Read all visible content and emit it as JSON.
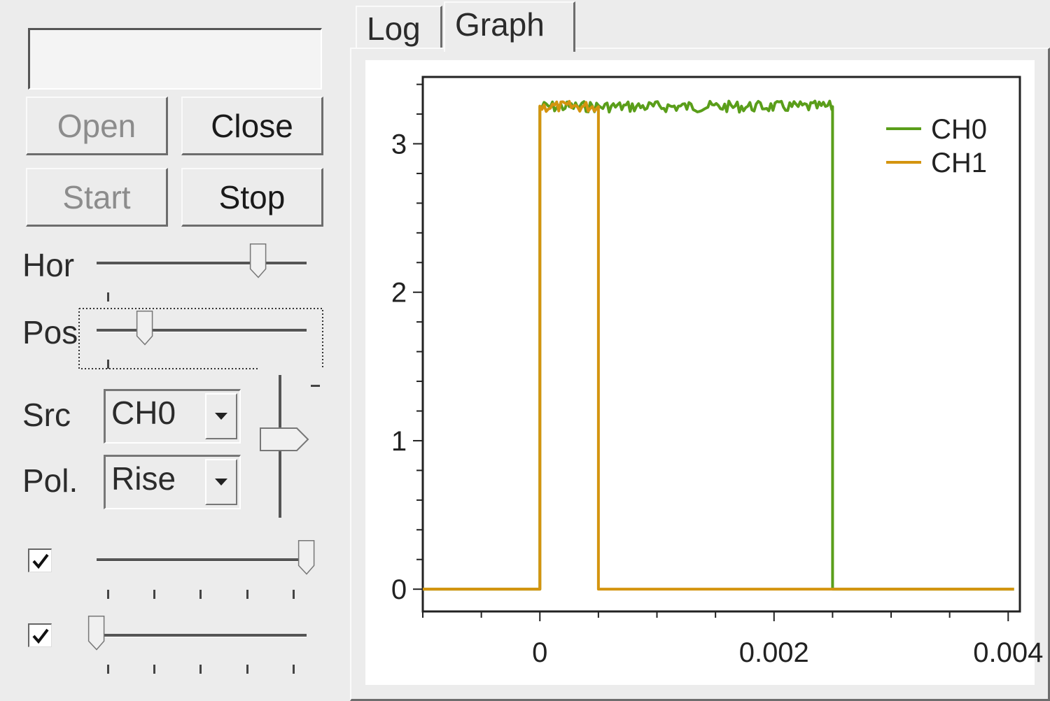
{
  "controls": {
    "textbox_value": "",
    "buttons": {
      "open": "Open",
      "close": "Close",
      "start": "Start",
      "stop": "Stop"
    },
    "labels": {
      "hor": "Hor",
      "pos": "Pos",
      "src": "Src",
      "pol": "Pol."
    },
    "src_value": "CH0",
    "pol_value": "Rise",
    "sliders": {
      "hor_level": 0.77,
      "pos_level": 0.23,
      "trigger_level": 0.45,
      "ch0_level": 1.0,
      "ch1_level": 0.0
    },
    "checkboxes": {
      "ch0_checked": true,
      "ch1_checked": true
    }
  },
  "tabs": {
    "log": "Log",
    "graph": "Graph",
    "active": "graph"
  },
  "colors": {
    "ch0": "#5a9e1a",
    "ch1": "#d4940f"
  },
  "chart_data": {
    "type": "line",
    "xlim": [
      -0.001,
      0.0041
    ],
    "ylim": [
      -0.15,
      3.45
    ],
    "x_ticks": [
      0,
      0.002,
      0.004
    ],
    "x_tick_labels": [
      "0",
      "0.002",
      "0.004"
    ],
    "y_ticks": [
      0,
      1,
      2,
      3
    ],
    "y_tick_labels": [
      "0",
      "1",
      "2",
      "3"
    ],
    "legend": "top-right",
    "grid": false,
    "series": [
      {
        "name": "CH0",
        "x": [
          -0.001,
          0.0,
          0.0,
          0.0025,
          0.0025,
          0.00405
        ],
        "y": [
          0,
          0,
          3.25,
          3.25,
          0,
          0
        ]
      },
      {
        "name": "CH1",
        "x": [
          -0.001,
          0.0,
          0.0,
          0.0005,
          0.0005,
          0.00405
        ],
        "y": [
          0,
          0,
          3.25,
          3.25,
          0,
          0
        ]
      }
    ]
  }
}
